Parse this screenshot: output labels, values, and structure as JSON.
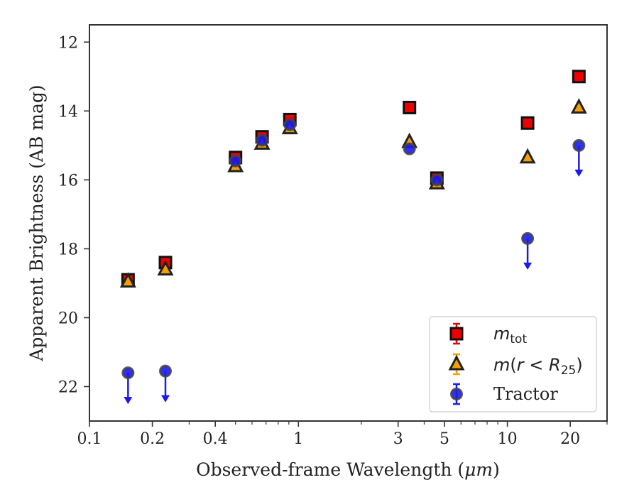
{
  "chart_data": {
    "type": "scatter",
    "xlabel_text": "Observed-frame Wavelength (",
    "xlabel_unit": "μm",
    "xlabel_close": ")",
    "ylabel": "Apparent Brightness (AB mag)",
    "x_scale": "log",
    "xlim": [
      0.1,
      30
    ],
    "ylim": [
      23,
      11.5
    ],
    "y_inverted": true,
    "grid": false,
    "legend_placement": "lower-right",
    "x_ticks": [
      {
        "value": 0.1,
        "label": "0.1"
      },
      {
        "value": 0.2,
        "label": "0.2"
      },
      {
        "value": 0.4,
        "label": "0.4"
      },
      {
        "value": 1,
        "label": "1"
      },
      {
        "value": 3,
        "label": "3"
      },
      {
        "value": 5,
        "label": "5"
      },
      {
        "value": 10,
        "label": "10"
      },
      {
        "value": 20,
        "label": "20"
      }
    ],
    "x_minor_ticks": [
      0.3,
      0.5,
      0.6,
      0.7,
      0.8,
      0.9,
      2,
      4,
      6,
      7,
      8,
      9,
      30
    ],
    "y_ticks": [
      {
        "value": 12,
        "label": "12"
      },
      {
        "value": 14,
        "label": "14"
      },
      {
        "value": 16,
        "label": "16"
      },
      {
        "value": 18,
        "label": "18"
      },
      {
        "value": 20,
        "label": "20"
      },
      {
        "value": 22,
        "label": "22"
      }
    ],
    "series": [
      {
        "name": "m_tot",
        "legend": {
          "italic": "m",
          "sub": "tot",
          "suffix": ""
        },
        "marker": "square",
        "color": "#ee0000",
        "edge": "#111111",
        "points": [
          {
            "x": 0.153,
            "y": 18.9
          },
          {
            "x": 0.231,
            "y": 18.4
          },
          {
            "x": 0.5,
            "y": 15.35
          },
          {
            "x": 0.67,
            "y": 14.75
          },
          {
            "x": 0.91,
            "y": 14.25
          },
          {
            "x": 3.4,
            "y": 13.9
          },
          {
            "x": 4.6,
            "y": 15.95
          },
          {
            "x": 12.5,
            "y": 14.35
          },
          {
            "x": 22,
            "y": 13.0
          }
        ]
      },
      {
        "name": "m(r < R25)",
        "legend": {
          "italic": "m",
          "mid": "(",
          "italic2": "r",
          "op": " < ",
          "italic3": "R",
          "sub": "25",
          "suffix": ")"
        },
        "marker": "triangle",
        "color": "#f5a000",
        "edge": "#222222",
        "points": [
          {
            "x": 0.153,
            "y": 18.95
          },
          {
            "x": 0.231,
            "y": 18.6
          },
          {
            "x": 0.5,
            "y": 15.6
          },
          {
            "x": 0.67,
            "y": 14.95
          },
          {
            "x": 0.91,
            "y": 14.5
          },
          {
            "x": 3.4,
            "y": 14.9
          },
          {
            "x": 4.6,
            "y": 16.1
          },
          {
            "x": 12.5,
            "y": 15.35
          },
          {
            "x": 22,
            "y": 13.9
          }
        ]
      },
      {
        "name": "Tractor",
        "legend": {
          "plain": "Tractor"
        },
        "marker": "circle",
        "color": "#1a1af0",
        "edge": "#444444",
        "points": [
          {
            "x": 0.153,
            "y": 21.6,
            "upper_limit": true
          },
          {
            "x": 0.231,
            "y": 21.55,
            "upper_limit": true
          },
          {
            "x": 0.5,
            "y": 15.45
          },
          {
            "x": 0.67,
            "y": 14.85
          },
          {
            "x": 0.91,
            "y": 14.4
          },
          {
            "x": 3.4,
            "y": 15.1
          },
          {
            "x": 4.6,
            "y": 16.0
          },
          {
            "x": 12.5,
            "y": 17.7,
            "upper_limit": true
          },
          {
            "x": 22,
            "y": 15.0,
            "upper_limit": true
          }
        ]
      }
    ]
  }
}
